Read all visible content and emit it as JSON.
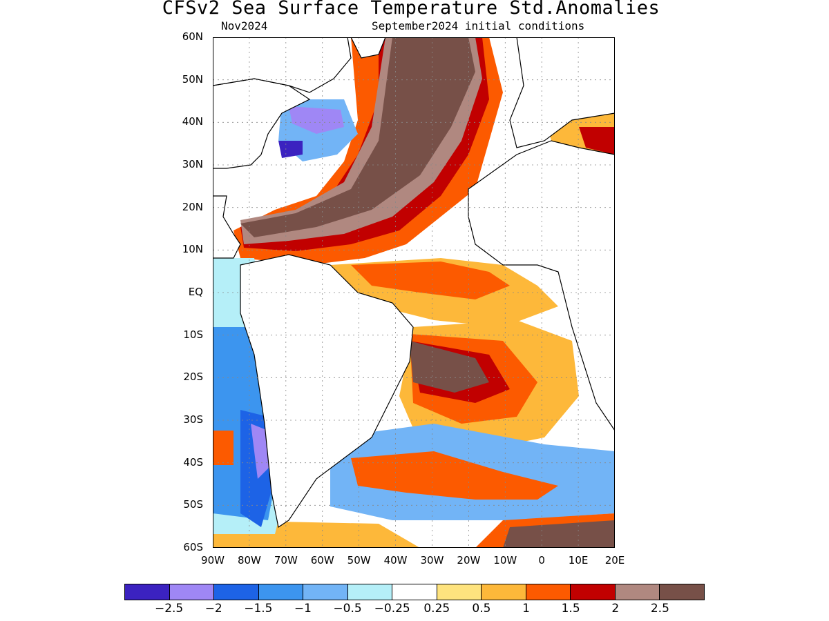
{
  "title": "CFSv2 Sea Surface Temperature Std.Anomalies",
  "subtitle_left": "Nov2024",
  "subtitle_right": "September2024 initial conditions",
  "map": {
    "region": "Atlantic Ocean",
    "lon_range": [
      -90,
      20
    ],
    "lat_range": [
      -60,
      60
    ],
    "grid": true,
    "lat_labels": [
      "60N",
      "50N",
      "40N",
      "30N",
      "20N",
      "10N",
      "EQ",
      "10S",
      "20S",
      "30S",
      "40S",
      "50S",
      "60S"
    ],
    "lon_labels": [
      "90W",
      "80W",
      "70W",
      "60W",
      "50W",
      "40W",
      "30W",
      "20W",
      "10W",
      "0",
      "10E",
      "20E"
    ]
  },
  "colorbar": {
    "colors": [
      "#3b22c0",
      "#9f87f5",
      "#1d63e6",
      "#3c95ef",
      "#72b4f6",
      "#b5eff8",
      "#ffffff",
      "#fee37e",
      "#fdb83a",
      "#fc5a00",
      "#c10000",
      "#b08880",
      "#775048"
    ],
    "labels": [
      "−2.5",
      "−2",
      "−1.5",
      "−1",
      "−0.5",
      "−0.25",
      "0.25",
      "0.5",
      "1",
      "1.5",
      "2",
      "2.5"
    ]
  }
}
